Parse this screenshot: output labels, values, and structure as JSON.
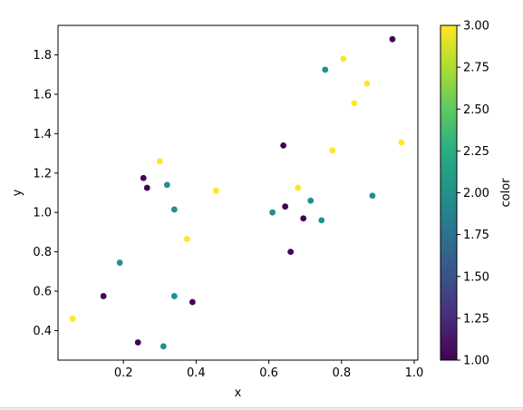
{
  "chart_data": {
    "type": "scatter",
    "title": "",
    "xlabel": "x",
    "ylabel": "y",
    "xlim": [
      0.02,
      1.01
    ],
    "ylim": [
      0.25,
      1.95
    ],
    "xticks": [
      0.2,
      0.4,
      0.6,
      0.8,
      1.0
    ],
    "xtick_labels": [
      "0.2",
      "0.4",
      "0.6",
      "0.8",
      "1.0"
    ],
    "yticks": [
      0.4,
      0.6,
      0.8,
      1.0,
      1.2,
      1.4,
      1.6,
      1.8
    ],
    "ytick_labels": [
      "0.4",
      "0.6",
      "0.8",
      "1.0",
      "1.2",
      "1.4",
      "1.6",
      "1.8"
    ],
    "grid": false,
    "colormap": "viridis",
    "points": [
      {
        "x": 0.06,
        "y": 0.46,
        "c": 3
      },
      {
        "x": 0.145,
        "y": 0.575,
        "c": 1
      },
      {
        "x": 0.19,
        "y": 0.745,
        "c": 2
      },
      {
        "x": 0.24,
        "y": 0.34,
        "c": 1
      },
      {
        "x": 0.255,
        "y": 1.175,
        "c": 1
      },
      {
        "x": 0.265,
        "y": 1.125,
        "c": 1
      },
      {
        "x": 0.3,
        "y": 1.26,
        "c": 3
      },
      {
        "x": 0.31,
        "y": 0.32,
        "c": 2
      },
      {
        "x": 0.32,
        "y": 1.14,
        "c": 2
      },
      {
        "x": 0.34,
        "y": 1.015,
        "c": 2
      },
      {
        "x": 0.34,
        "y": 0.575,
        "c": 2
      },
      {
        "x": 0.375,
        "y": 0.865,
        "c": 3
      },
      {
        "x": 0.39,
        "y": 0.545,
        "c": 1
      },
      {
        "x": 0.455,
        "y": 1.11,
        "c": 3
      },
      {
        "x": 0.61,
        "y": 1.0,
        "c": 2
      },
      {
        "x": 0.64,
        "y": 1.34,
        "c": 1
      },
      {
        "x": 0.645,
        "y": 1.03,
        "c": 1
      },
      {
        "x": 0.66,
        "y": 0.8,
        "c": 1
      },
      {
        "x": 0.68,
        "y": 1.125,
        "c": 3
      },
      {
        "x": 0.695,
        "y": 0.97,
        "c": 1
      },
      {
        "x": 0.715,
        "y": 1.06,
        "c": 2
      },
      {
        "x": 0.745,
        "y": 0.96,
        "c": 2
      },
      {
        "x": 0.755,
        "y": 1.725,
        "c": 2
      },
      {
        "x": 0.775,
        "y": 1.315,
        "c": 3
      },
      {
        "x": 0.805,
        "y": 1.78,
        "c": 3
      },
      {
        "x": 0.835,
        "y": 1.555,
        "c": 3
      },
      {
        "x": 0.87,
        "y": 1.655,
        "c": 3
      },
      {
        "x": 0.885,
        "y": 1.085,
        "c": 2
      },
      {
        "x": 0.94,
        "y": 1.88,
        "c": 1
      },
      {
        "x": 0.965,
        "y": 1.355,
        "c": 3
      }
    ],
    "colorbar": {
      "label": "color",
      "range": [
        1.0,
        3.0
      ],
      "ticks": [
        1.0,
        1.25,
        1.5,
        1.75,
        2.0,
        2.25,
        2.5,
        2.75,
        3.0
      ],
      "tick_labels": [
        "1.00",
        "1.25",
        "1.50",
        "1.75",
        "2.00",
        "2.25",
        "2.50",
        "2.75",
        "3.00"
      ]
    }
  }
}
